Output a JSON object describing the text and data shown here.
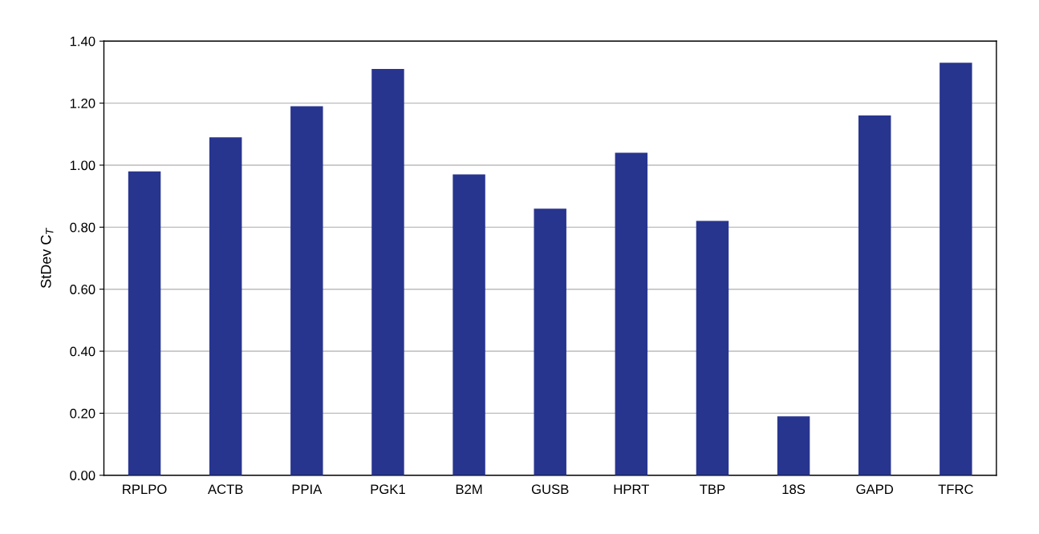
{
  "chart_data": {
    "type": "bar",
    "ylabel": "StDev C$_{T}$",
    "categories": [
      "RPLPO",
      "ACTB",
      "PPIA",
      "PGK1",
      "B2M",
      "GUSB",
      "HPRT",
      "TBP",
      "18S",
      "GAPD",
      "TFRC"
    ],
    "values": [
      0.98,
      1.09,
      1.19,
      1.31,
      0.97,
      0.86,
      1.04,
      0.82,
      0.19,
      1.16,
      1.33
    ],
    "color": "#28358f",
    "ylim": [
      0,
      1.4
    ],
    "yticks": [
      {
        "value": 0,
        "label": "0.00"
      },
      {
        "value": 0.2,
        "label": "0.20"
      },
      {
        "value": 0.4,
        "label": "0.40"
      },
      {
        "value": 0.6,
        "label": "0.60"
      },
      {
        "value": 0.8,
        "label": "0.80"
      },
      {
        "value": 1.0,
        "label": "1.00"
      },
      {
        "value": 1.2,
        "label": "1.20"
      },
      {
        "value": 1.4,
        "label": "1.40"
      }
    ],
    "grid": "y"
  }
}
